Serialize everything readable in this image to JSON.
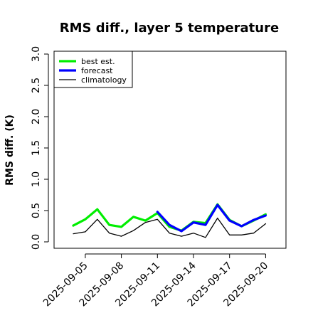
{
  "chart_data": {
    "type": "line",
    "title": "RMS diff., layer 5 temperature",
    "ylabel": "RMS diff. (K)",
    "xlabel": "",
    "ylim": [
      0,
      3.0
    ],
    "yticks": [
      "0.0",
      "0.5",
      "1.0",
      "1.5",
      "2.0",
      "2.5",
      "3.0"
    ],
    "x": [
      "2025-09-04",
      "2025-09-05",
      "2025-09-06",
      "2025-09-07",
      "2025-09-08",
      "2025-09-09",
      "2025-09-10",
      "2025-09-11",
      "2025-09-12",
      "2025-09-13",
      "2025-09-14",
      "2025-09-15",
      "2025-09-16",
      "2025-09-17",
      "2025-09-18",
      "2025-09-19",
      "2025-09-20"
    ],
    "xtick_labels": [
      "2025-09-05",
      "2025-09-08",
      "2025-09-11",
      "2025-09-14",
      "2025-09-17",
      "2025-09-20"
    ],
    "xtick_colors": [
      "#000000",
      "#000000",
      "#228B22",
      "#000000",
      "#000000",
      "#000000"
    ],
    "series": [
      {
        "name": "best est.",
        "color": "#00ee00",
        "width": 3.2,
        "values": [
          0.26,
          0.36,
          0.52,
          0.27,
          0.24,
          0.4,
          0.34,
          0.46,
          0.24,
          0.18,
          0.32,
          0.3,
          0.6,
          0.35,
          0.25,
          0.34,
          0.44
        ]
      },
      {
        "name": "forecast",
        "color": "#0000ff",
        "width": 3.2,
        "values": [
          null,
          null,
          null,
          null,
          null,
          null,
          null,
          0.48,
          0.27,
          0.17,
          0.31,
          0.27,
          0.59,
          0.34,
          0.25,
          0.35,
          0.42
        ]
      },
      {
        "name": "climatology",
        "color": "#000000",
        "width": 1.3,
        "values": [
          0.13,
          0.16,
          0.36,
          0.14,
          0.09,
          0.18,
          0.31,
          0.36,
          0.14,
          0.09,
          0.14,
          0.07,
          0.38,
          0.11,
          0.11,
          0.14,
          0.29
        ]
      }
    ],
    "legend_position": "top-left",
    "grid": false
  }
}
